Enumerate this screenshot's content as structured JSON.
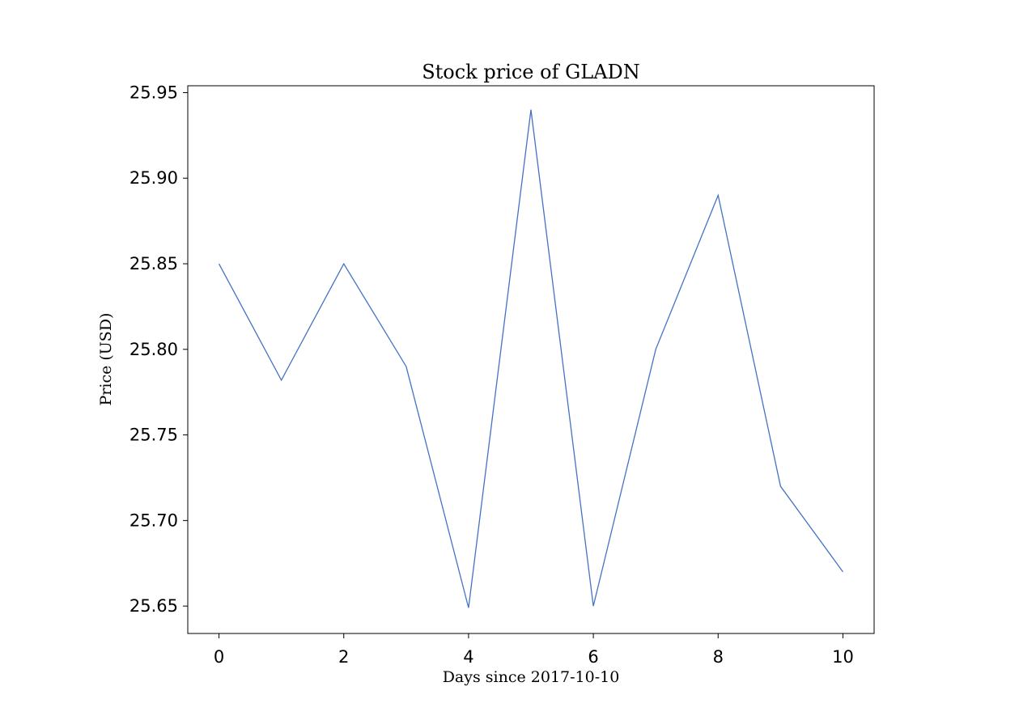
{
  "chart_data": {
    "type": "line",
    "title": "Stock price of GLADN",
    "xlabel": "Days since 2017-10-10",
    "ylabel": "Price (USD)",
    "x": [
      0,
      1,
      2,
      3,
      4,
      5,
      6,
      7,
      8,
      9,
      10
    ],
    "series": [
      {
        "values": [
          25.85,
          25.782,
          25.85,
          25.79,
          25.649,
          25.94,
          25.65,
          25.8,
          25.89,
          25.72,
          25.67
        ],
        "color": "#4472c4"
      }
    ],
    "xlim": [
      -0.5,
      10.5
    ],
    "ylim": [
      25.634,
      25.954
    ],
    "xticks": [
      0,
      2,
      4,
      6,
      8,
      10
    ],
    "xtick_labels": [
      "0",
      "2",
      "4",
      "6",
      "8",
      "10"
    ],
    "yticks": [
      25.65,
      25.7,
      25.75,
      25.8,
      25.85,
      25.9,
      25.95
    ],
    "ytick_labels": [
      "25.65",
      "25.70",
      "25.75",
      "25.80",
      "25.85",
      "25.90",
      "25.95"
    ],
    "grid": false,
    "legend": "none"
  }
}
